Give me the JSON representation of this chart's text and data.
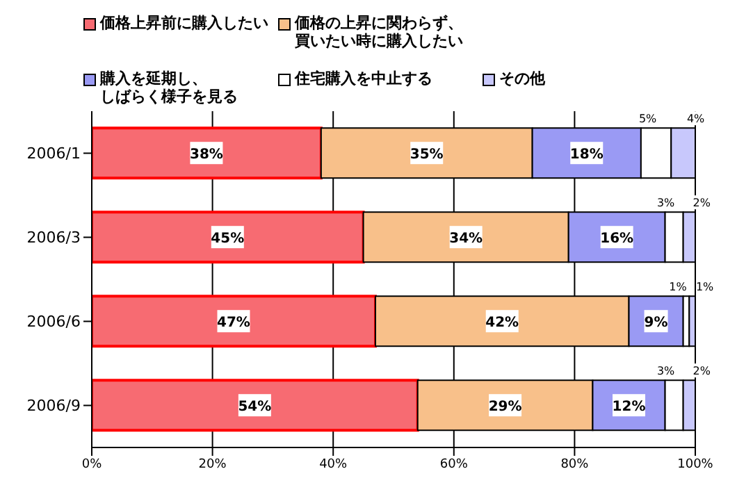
{
  "chart_data": {
    "type": "bar",
    "orientation": "horizontal",
    "stacked": true,
    "categories": [
      "2006/1",
      "2006/3",
      "2006/6",
      "2006/9"
    ],
    "series": [
      {
        "name": "価格上昇前に購入したい",
        "color": "#f76b72",
        "values": [
          38,
          45,
          47,
          54
        ],
        "value_labels": [
          "38%",
          "45%",
          "47%",
          "54%"
        ]
      },
      {
        "name": "価格の上昇に関わらず、買いたい時に購入したい",
        "color": "#f8c08a",
        "values": [
          35,
          34,
          42,
          29
        ],
        "value_labels": [
          "35%",
          "34%",
          "42%",
          "29%"
        ]
      },
      {
        "name": "購入を延期し、しばらく様子を見る",
        "color": "#9a9af4",
        "values": [
          18,
          16,
          9,
          12
        ],
        "value_labels": [
          "18%",
          "16%",
          "9%",
          "12%"
        ]
      },
      {
        "name": "住宅購入を中止する",
        "color": "#ffffff",
        "values": [
          5,
          3,
          1,
          3
        ],
        "value_labels": [
          "5%",
          "3%",
          "1%",
          "3%"
        ]
      },
      {
        "name": "その他",
        "color": "#c8c8fc",
        "values": [
          4,
          2,
          1,
          2
        ],
        "value_labels": [
          "4%",
          "2%",
          "1%",
          "2%"
        ]
      }
    ],
    "xlim": [
      0,
      100
    ],
    "xticks": [
      {
        "value": 0,
        "label": "0%"
      },
      {
        "value": 20,
        "label": "20%"
      },
      {
        "value": 40,
        "label": "40%"
      },
      {
        "value": 60,
        "label": "60%"
      },
      {
        "value": 80,
        "label": "80%"
      },
      {
        "value": 100,
        "label": "100%"
      }
    ],
    "grid": "x",
    "legend": "top"
  }
}
